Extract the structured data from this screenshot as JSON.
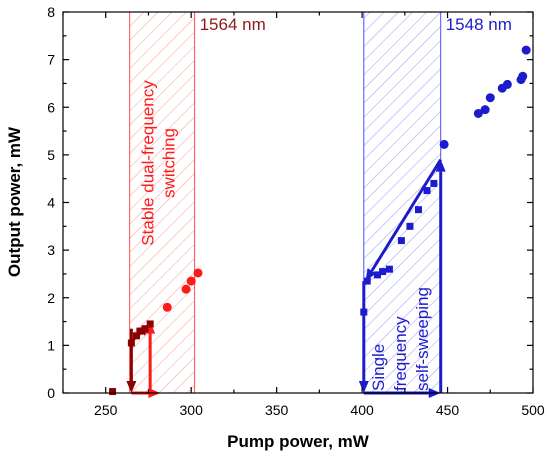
{
  "chart_data": {
    "type": "scatter",
    "xlabel": "Pump power, mW",
    "ylabel": "Output power, mW",
    "xlim": [
      225,
      500
    ],
    "ylim": [
      0,
      8
    ],
    "x_ticks": [
      250,
      300,
      350,
      400,
      450,
      500
    ],
    "y_ticks": [
      0,
      1,
      2,
      3,
      4,
      5,
      6,
      7,
      8
    ],
    "grid": false,
    "colors": {
      "dark_red": "#8b0000",
      "red": "#ff1a1a",
      "blue": "#1c1ccc",
      "region_red": "#ff4d4d",
      "region_blue": "#4d4dff"
    },
    "series": [
      {
        "marker": "square",
        "color": "#8b0000",
        "points": [
          [
            254,
            0.03
          ],
          [
            265,
            1.05
          ],
          [
            268,
            1.2
          ],
          [
            270,
            1.3
          ],
          [
            273,
            1.35
          ],
          [
            276,
            1.45
          ]
        ]
      },
      {
        "marker": "circle",
        "color": "#ff1a1a",
        "points": [
          [
            286,
            1.8
          ],
          [
            297,
            2.18
          ],
          [
            300,
            2.35
          ],
          [
            304,
            2.52
          ]
        ]
      },
      {
        "marker": "square",
        "color": "#1c1ccc",
        "points": [
          [
            401,
            1.7
          ],
          [
            403,
            2.35
          ],
          [
            409,
            2.48
          ],
          [
            412,
            2.55
          ],
          [
            416,
            2.6
          ],
          [
            423,
            3.2
          ],
          [
            428,
            3.5
          ],
          [
            433,
            3.85
          ],
          [
            438,
            4.25
          ],
          [
            442,
            4.4
          ]
        ]
      },
      {
        "marker": "circle",
        "color": "#1c1ccc",
        "points": [
          [
            448,
            5.22
          ],
          [
            468,
            5.87
          ],
          [
            472,
            5.95
          ],
          [
            475,
            6.2
          ],
          [
            482,
            6.4
          ],
          [
            485,
            6.48
          ],
          [
            493,
            6.58
          ],
          [
            494,
            6.65
          ],
          [
            496,
            7.2
          ]
        ]
      }
    ],
    "regions": [
      {
        "x": [
          264,
          302
        ],
        "color": "#ff4d4d",
        "label": "1564 nm",
        "label_color": "#8b1a1a",
        "text": [
          "Stable dual-frequency",
          "switching"
        ],
        "text_color": "#ff1a1a"
      },
      {
        "x": [
          401,
          446
        ],
        "color": "#4d4dff",
        "label": "1548 nm",
        "label_color": "#1c1ccc",
        "text": [
          "Single",
          "frequency",
          "self-sweeping"
        ],
        "text_color": "#1c1ccc"
      }
    ],
    "arrows": [
      {
        "from": [
          265,
          1.35
        ],
        "to": [
          265,
          0.0
        ],
        "color": "#8b0000"
      },
      {
        "from": [
          264,
          1.05
        ],
        "to": [
          276,
          1.45
        ],
        "color": "#8b0000"
      },
      {
        "from": [
          265,
          0.0
        ],
        "to": [
          282,
          0.0
        ],
        "color": "#ff1a1a"
      },
      {
        "from": [
          276,
          0.0
        ],
        "to": [
          276,
          1.5
        ],
        "color": "#ff1a1a"
      },
      {
        "from": [
          401,
          2.35
        ],
        "to": [
          401,
          0.0
        ],
        "color": "#1c1ccc"
      },
      {
        "from": [
          401,
          0.0
        ],
        "to": [
          446,
          0.0
        ],
        "color": "#1c1ccc"
      },
      {
        "from": [
          446,
          0.0
        ],
        "to": [
          446,
          4.9
        ],
        "color": "#1c1ccc"
      },
      {
        "from": [
          446,
          4.9
        ],
        "to": [
          402,
          2.35
        ],
        "color": "#1c1ccc"
      }
    ]
  }
}
